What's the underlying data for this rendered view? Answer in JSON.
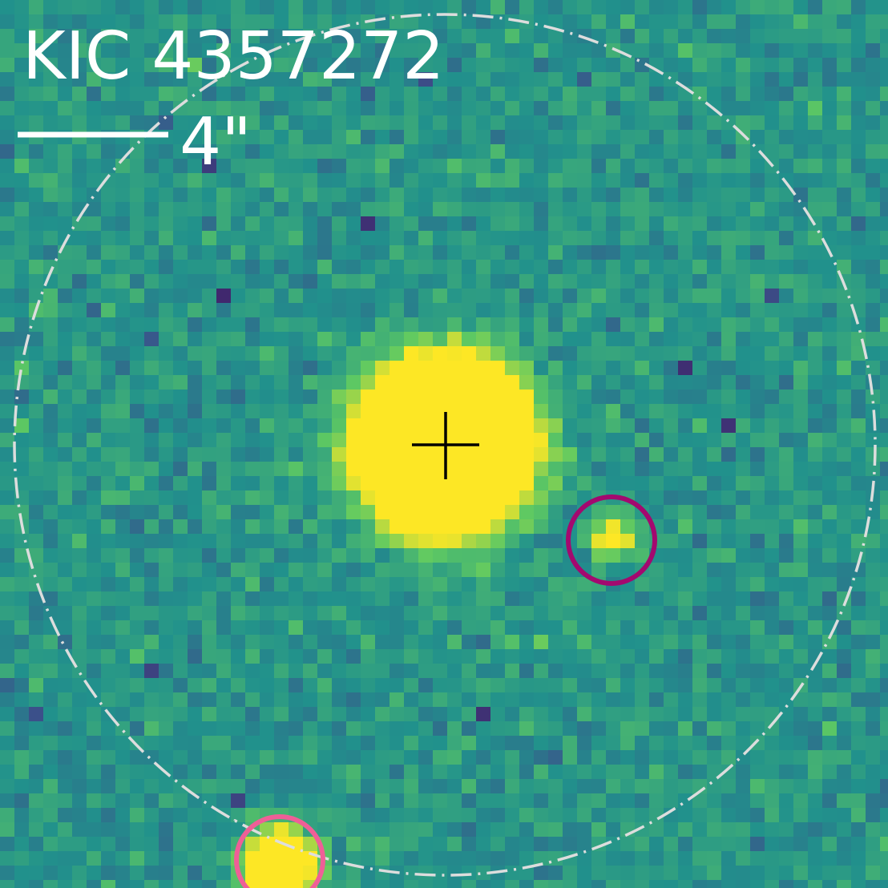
{
  "title": "KIC 4357272",
  "scale_label": "4\""
}
